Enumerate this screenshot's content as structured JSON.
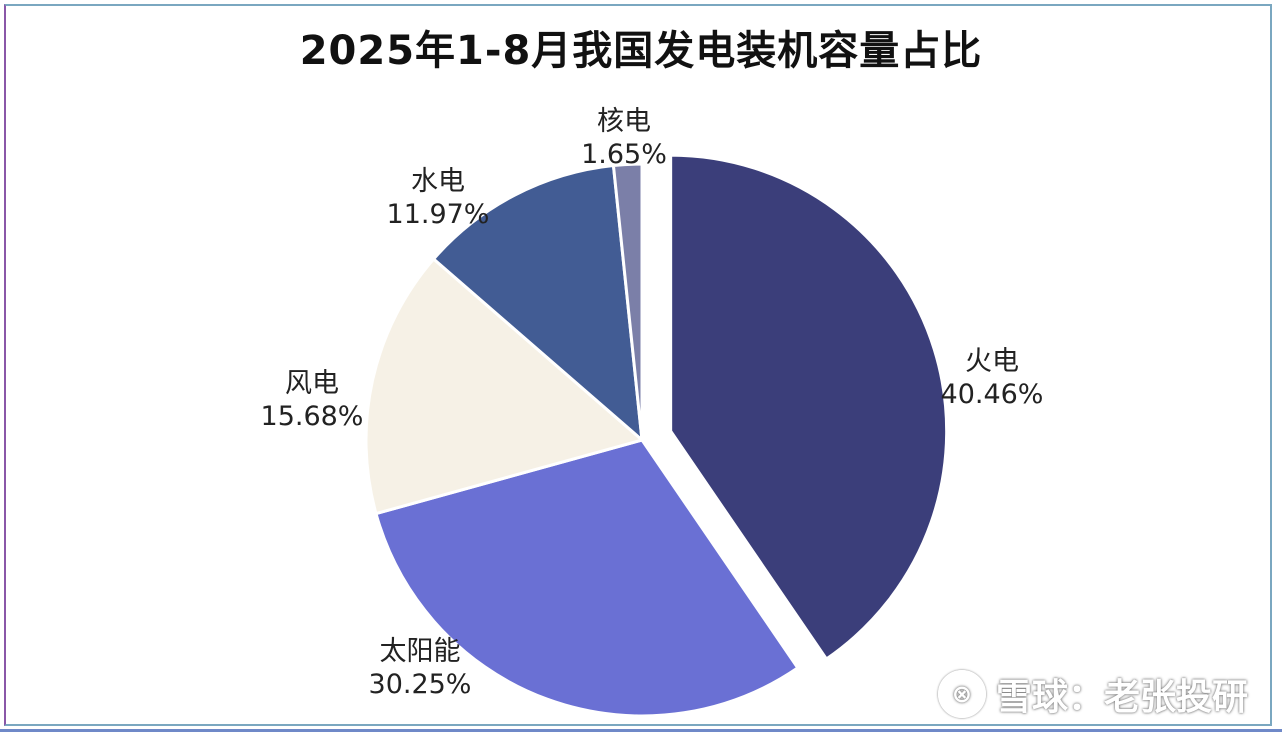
{
  "chart_data": {
    "type": "pie",
    "title": "2025年1-8月我国发电装机容量占比",
    "slices": [
      {
        "name": "火电",
        "value": 40.46,
        "label": "40.46%",
        "color": "#3b3e7a",
        "exploded": true
      },
      {
        "name": "太阳能",
        "value": 30.25,
        "label": "30.25%",
        "color": "#6a70d4",
        "exploded": false
      },
      {
        "name": "风电",
        "value": 15.68,
        "label": "15.68%",
        "color": "#f6f1e6",
        "exploded": false
      },
      {
        "name": "水电",
        "value": 11.97,
        "label": "11.97%",
        "color": "#425c94",
        "exploded": false
      },
      {
        "name": "核电",
        "value": 1.65,
        "label": "1.65%",
        "color": "#7b7fa8",
        "exploded": false
      }
    ]
  },
  "watermark": {
    "icon": "xueqiu-logo-icon",
    "text": "雪球：老张投研"
  }
}
